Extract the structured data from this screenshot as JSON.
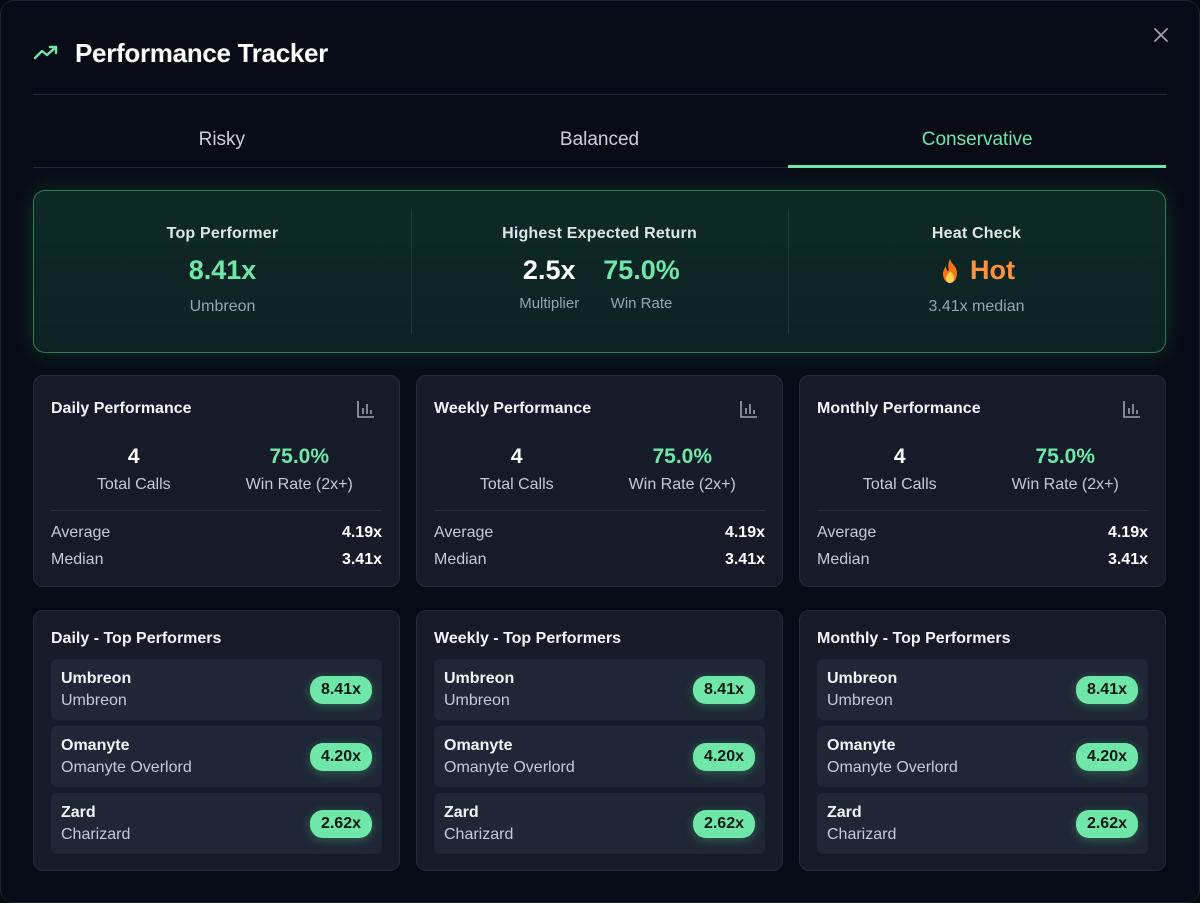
{
  "header": {
    "title": "Performance Tracker",
    "close_icon": "close-icon",
    "trend_icon": "trending-up-icon"
  },
  "tabs": [
    {
      "label": "Risky",
      "active": false
    },
    {
      "label": "Balanced",
      "active": false
    },
    {
      "label": "Conservative",
      "active": true
    }
  ],
  "summary": {
    "top_performer": {
      "label": "Top Performer",
      "value": "8.41x",
      "name": "Umbreon"
    },
    "expected_return": {
      "label": "Highest Expected Return",
      "multiplier": "2.5x",
      "multiplier_label": "Multiplier",
      "win_rate": "75.0%",
      "win_rate_label": "Win Rate"
    },
    "heat_check": {
      "label": "Heat Check",
      "status": "Hot",
      "icon": "flame-icon",
      "detail": "3.41x median"
    }
  },
  "performance": [
    {
      "title": "Daily Performance",
      "total_calls": "4",
      "total_calls_label": "Total Calls",
      "win_rate": "75.0%",
      "win_rate_label": "Win Rate (2x+)",
      "average_label": "Average",
      "average": "4.19x",
      "median_label": "Median",
      "median": "3.41x"
    },
    {
      "title": "Weekly Performance",
      "total_calls": "4",
      "total_calls_label": "Total Calls",
      "win_rate": "75.0%",
      "win_rate_label": "Win Rate (2x+)",
      "average_label": "Average",
      "average": "4.19x",
      "median_label": "Median",
      "median": "3.41x"
    },
    {
      "title": "Monthly Performance",
      "total_calls": "4",
      "total_calls_label": "Total Calls",
      "win_rate": "75.0%",
      "win_rate_label": "Win Rate (2x+)",
      "average_label": "Average",
      "average": "4.19x",
      "median_label": "Median",
      "median": "3.41x"
    }
  ],
  "top_performers": [
    {
      "title": "Daily - Top Performers",
      "items": [
        {
          "name": "Umbreon",
          "full": "Umbreon",
          "mult": "8.41x"
        },
        {
          "name": "Omanyte",
          "full": "Omanyte Overlord",
          "mult": "4.20x"
        },
        {
          "name": "Zard",
          "full": "Charizard",
          "mult": "2.62x"
        }
      ]
    },
    {
      "title": "Weekly - Top Performers",
      "items": [
        {
          "name": "Umbreon",
          "full": "Umbreon",
          "mult": "8.41x"
        },
        {
          "name": "Omanyte",
          "full": "Omanyte Overlord",
          "mult": "4.20x"
        },
        {
          "name": "Zard",
          "full": "Charizard",
          "mult": "2.62x"
        }
      ]
    },
    {
      "title": "Monthly - Top Performers",
      "items": [
        {
          "name": "Umbreon",
          "full": "Umbreon",
          "mult": "8.41x"
        },
        {
          "name": "Omanyte",
          "full": "Omanyte Overlord",
          "mult": "4.20x"
        },
        {
          "name": "Zard",
          "full": "Charizard",
          "mult": "2.62x"
        }
      ]
    }
  ],
  "colors": {
    "accent": "#6ee7a8",
    "hot": "#fb923c",
    "background": "#070b16",
    "card": "#151b28"
  }
}
